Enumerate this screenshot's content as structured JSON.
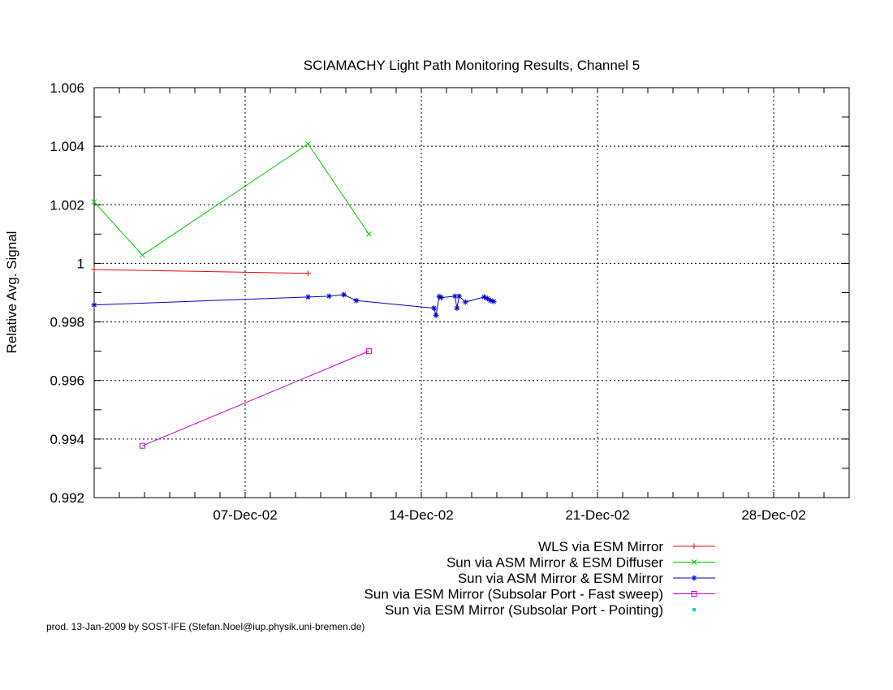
{
  "chart_data": {
    "type": "line",
    "title": "SCIAMACHY Light Path Monitoring Results, Channel 5",
    "xlabel": "",
    "ylabel": "Relative Avg. Signal",
    "x_axis": {
      "kind": "date",
      "range": [
        "2002-12-01",
        "2002-12-31"
      ],
      "major_ticks": [
        "2002-12-07",
        "2002-12-14",
        "2002-12-21",
        "2002-12-28"
      ],
      "tick_labels": [
        "07-Dec-02",
        "14-Dec-02",
        "21-Dec-02",
        "28-Dec-02"
      ],
      "minor_tick_step_days": 1
    },
    "y_axis": {
      "range": [
        0.992,
        1.006
      ],
      "ticks": [
        0.992,
        0.994,
        0.996,
        0.998,
        1.0,
        1.002,
        1.004,
        1.006
      ],
      "tick_labels": [
        "0.992",
        "0.994",
        "0.996",
        "0.998",
        "1",
        "1.002",
        "1.004",
        "1.006"
      ]
    },
    "grid": true,
    "legend_position": "below-right",
    "series": [
      {
        "name": "WLS via ESM Mirror",
        "color": "#ff0000",
        "marker": "plus",
        "points": [
          [
            "2002-12-01T00:00",
            0.99979
          ],
          [
            "2002-12-09T12:00",
            0.99966
          ]
        ]
      },
      {
        "name": "Sun via ASM Mirror & ESM Diffuser",
        "color": "#00c800",
        "marker": "cross",
        "points": [
          [
            "2002-12-01T00:00",
            1.0021
          ],
          [
            "2002-12-02T22:00",
            1.00028
          ],
          [
            "2002-12-09T12:00",
            1.00408
          ],
          [
            "2002-12-11T22:00",
            1.001
          ]
        ]
      },
      {
        "name": "Sun via ASM Mirror & ESM Mirror",
        "color": "#0000cc",
        "marker": "star",
        "points": [
          [
            "2002-12-01T00:00",
            0.99858
          ],
          [
            "2002-12-09T12:00",
            0.99885
          ],
          [
            "2002-12-10T08:00",
            0.99888
          ],
          [
            "2002-12-10T22:00",
            0.99893
          ],
          [
            "2002-12-11T10:00",
            0.99873
          ],
          [
            "2002-12-14T12:00",
            0.99847
          ],
          [
            "2002-12-14T14:00",
            0.99822
          ],
          [
            "2002-12-14T17:00",
            0.99887
          ],
          [
            "2002-12-14T19:00",
            0.99883
          ],
          [
            "2002-12-15T08:00",
            0.99888
          ],
          [
            "2002-12-15T10:00",
            0.99847
          ],
          [
            "2002-12-15T12:00",
            0.99888
          ],
          [
            "2002-12-15T18:00",
            0.99868
          ],
          [
            "2002-12-16T12:00",
            0.99885
          ],
          [
            "2002-12-16T15:00",
            0.9988
          ],
          [
            "2002-12-16T18:00",
            0.99873
          ],
          [
            "2002-12-16T21:00",
            0.9987
          ]
        ]
      },
      {
        "name": "Sun via ESM Mirror (Subsolar Port - Fast sweep)",
        "color": "#cc00cc",
        "marker": "square",
        "points": [
          [
            "2002-12-02T22:00",
            0.99377
          ],
          [
            "2002-12-11T22:00",
            0.997
          ]
        ]
      },
      {
        "name": "Sun via ESM Mirror (Subsolar Port - Pointing)",
        "color": "#00cccc",
        "marker": "dot",
        "points": []
      }
    ]
  },
  "footer": "prod. 13-Jan-2009 by SOST-IFE (Stefan.Noel@iup.physik.uni-bremen.de)"
}
